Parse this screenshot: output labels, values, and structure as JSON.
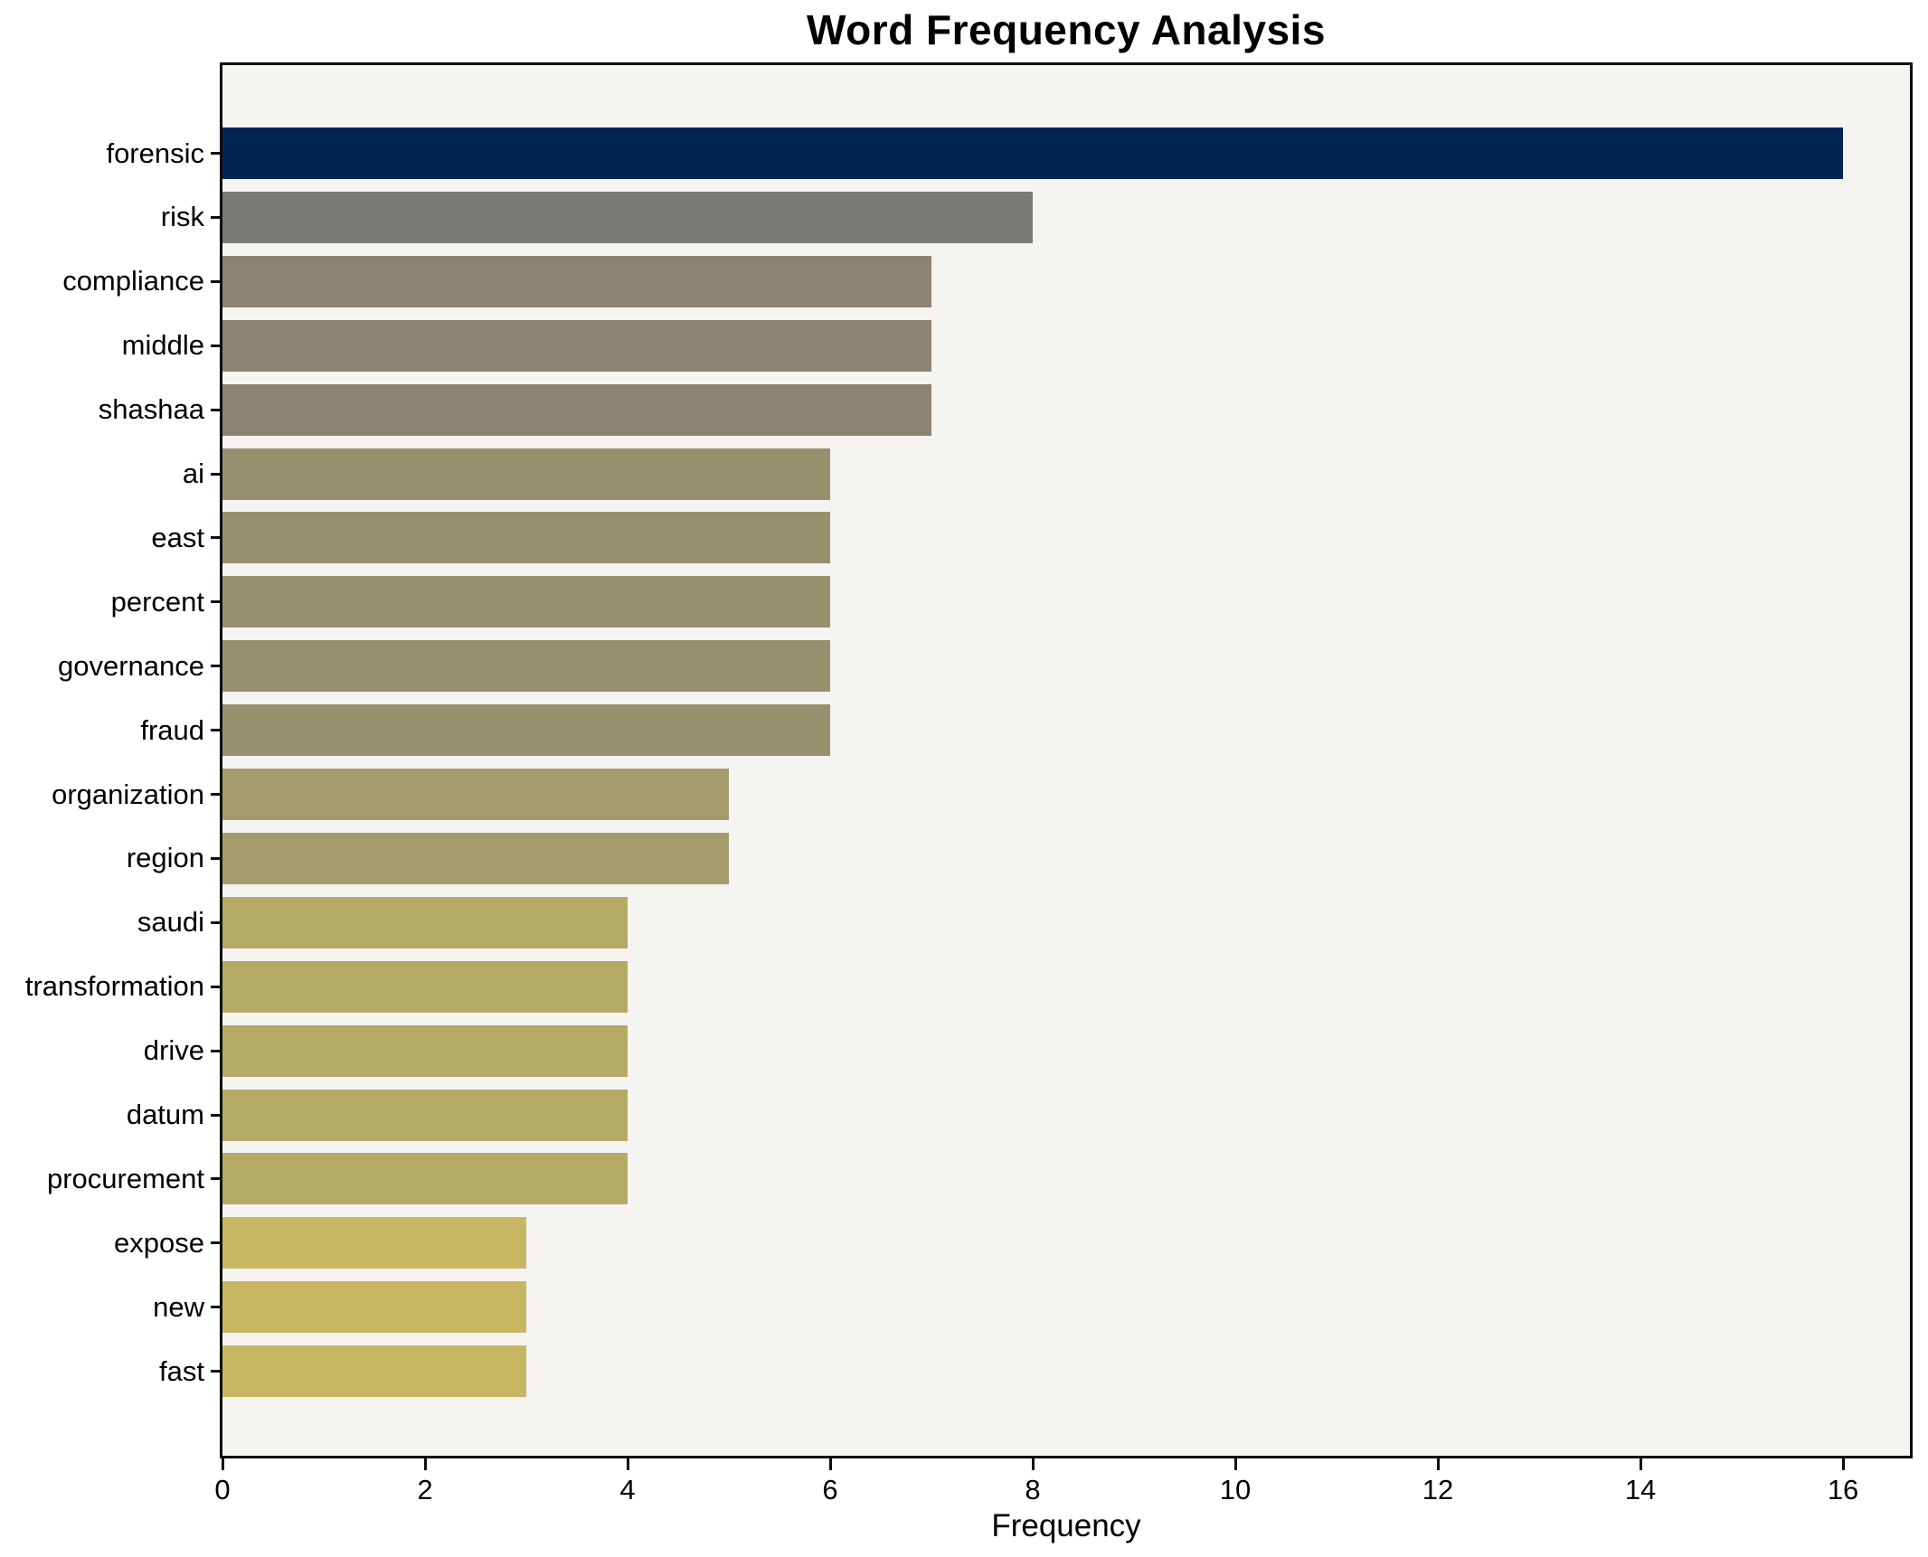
{
  "page": {
    "title": "Word Frequency Analysis"
  },
  "chart_data": {
    "type": "bar",
    "orientation": "horizontal",
    "title": "Word Frequency Analysis",
    "xlabel": "Frequency",
    "ylabel": "",
    "categories": [
      "forensic",
      "risk",
      "compliance",
      "middle",
      "shashaa",
      "ai",
      "east",
      "percent",
      "governance",
      "fraud",
      "organization",
      "region",
      "saudi",
      "transformation",
      "drive",
      "datum",
      "procurement",
      "expose",
      "new",
      "fast"
    ],
    "values": [
      16,
      8,
      7,
      7,
      7,
      6,
      6,
      6,
      6,
      6,
      5,
      5,
      4,
      4,
      4,
      4,
      4,
      3,
      3,
      3
    ],
    "bar_colors": [
      "#032552",
      "#7a7a76",
      "#8a8472",
      "#8a8472",
      "#8a8472",
      "#97906f",
      "#97906f",
      "#97906f",
      "#97906f",
      "#97906f",
      "#a69b6d",
      "#a69b6d",
      "#b5a966",
      "#b5a966",
      "#b5a966",
      "#b5a966",
      "#b5a966",
      "#c8b663",
      "#c8b663",
      "#c8b663"
    ],
    "xlim": [
      0,
      16.66
    ],
    "xticks": [
      0,
      2,
      4,
      6,
      8,
      10,
      12,
      14,
      16
    ],
    "grid": false,
    "legend": "none",
    "colors": {
      "plot_background": "#f5f4f1",
      "figure_background": "#ffffff",
      "axis": "#0d0d0d",
      "text": "#000000"
    }
  }
}
